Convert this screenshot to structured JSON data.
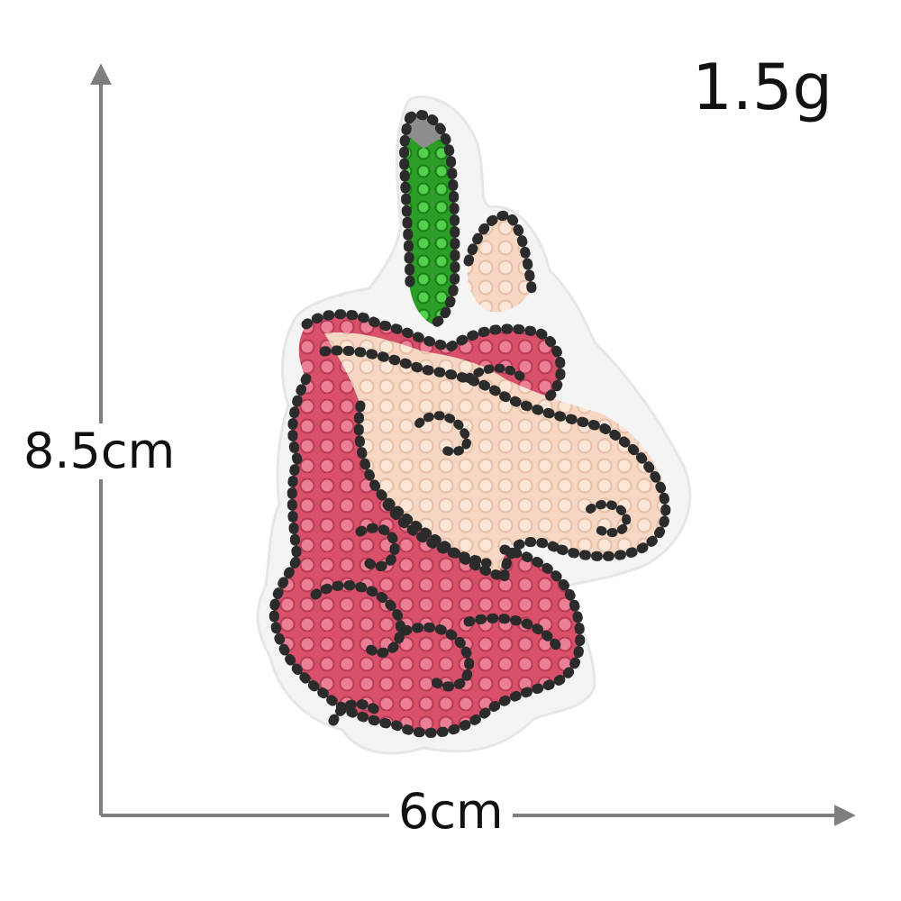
{
  "labels": {
    "weight": "1.5g",
    "height": "8.5cm",
    "width": "6cm"
  },
  "patch": {
    "subject": "unicorn-head-sequin-patch",
    "colors": {
      "outline": "#2b2b2b",
      "outline_grey": "#7a7a7a",
      "face": "#f6d7c3",
      "mane": "#e0607a",
      "mane_light": "#f3a2b2",
      "horn": "#2fb52c",
      "felt": "#f4f4f4",
      "arrow": "#7f7f7f"
    }
  }
}
